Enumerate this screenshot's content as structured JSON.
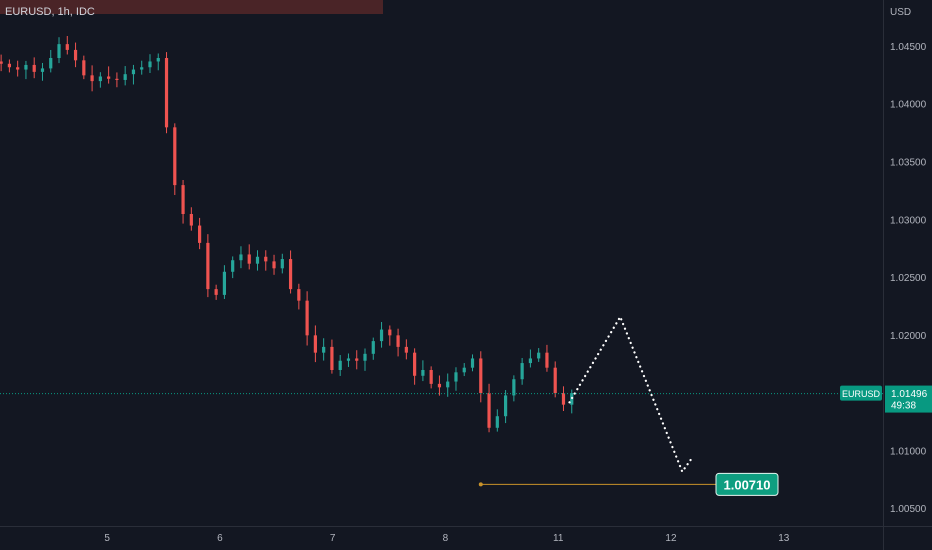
{
  "header": {
    "symbol_text": "EURUSD, 1h, IDC"
  },
  "axis": {
    "currency": "USD",
    "price_ticks": [
      {
        "value": 1.045,
        "label": "1.04500"
      },
      {
        "value": 1.04,
        "label": "1.04000"
      },
      {
        "value": 1.035,
        "label": "1.03500"
      },
      {
        "value": 1.03,
        "label": "1.03000"
      },
      {
        "value": 1.025,
        "label": "1.02500"
      },
      {
        "value": 1.02,
        "label": "1.02000"
      },
      {
        "value": 1.01,
        "label": "1.01000"
      },
      {
        "value": 1.005,
        "label": "1.00500"
      }
    ],
    "date_ticks": [
      {
        "pos": 5.0,
        "label": "5"
      },
      {
        "pos": 6.0,
        "label": "6"
      },
      {
        "pos": 7.0,
        "label": "7"
      },
      {
        "pos": 8.0,
        "label": "8"
      },
      {
        "pos": 9.0,
        "label": "11"
      },
      {
        "pos": 10.0,
        "label": "12"
      },
      {
        "pos": 11.0,
        "label": "13"
      }
    ]
  },
  "last_price": {
    "symbol": "EURUSD",
    "price": 1.01496,
    "price_text": "1.01496",
    "countdown": "49:38",
    "color": "#089981"
  },
  "annotation": {
    "level": 1.0071,
    "level_text": "1.00710",
    "color": "#0e9e80",
    "line_color": "#c8922a"
  },
  "colors": {
    "up": "#26a69a",
    "down": "#ef5350",
    "background": "#131722"
  },
  "chart_data": {
    "type": "candlestick",
    "y_unit": "USD",
    "interval": "1h",
    "approx_closes": [
      1.0435,
      1.0432,
      1.043,
      1.0434,
      1.0428,
      1.0431,
      1.044,
      1.0452,
      1.0447,
      1.0438,
      1.0425,
      1.042,
      1.0424,
      1.0422,
      1.0421,
      1.0426,
      1.043,
      1.0432,
      1.0437,
      1.044,
      1.038,
      1.033,
      1.0305,
      1.0295,
      1.028,
      1.024,
      1.0235,
      1.0255,
      1.0265,
      1.027,
      1.0262,
      1.0268,
      1.0264,
      1.0258,
      1.0266,
      1.024,
      1.023,
      1.02,
      1.0185,
      1.019,
      1.017,
      1.0178,
      1.018,
      1.0178,
      1.0184,
      1.0195,
      1.0205,
      1.02,
      1.019,
      1.0185,
      1.0165,
      1.017,
      1.0158,
      1.0155,
      1.016,
      1.0168,
      1.0172,
      1.018,
      1.015,
      1.012,
      1.013,
      1.0148,
      1.0162,
      1.0176,
      1.018,
      1.0185,
      1.0172,
      1.015,
      1.014,
      1.015
    ],
    "projection_path": [
      {
        "x": 9.1,
        "y": 1.0142
      },
      {
        "x": 9.55,
        "y": 1.0216
      },
      {
        "x": 10.1,
        "y": 1.0082
      },
      {
        "x": 10.18,
        "y": 1.0093
      }
    ],
    "ylim": [
      1.0035,
      1.0485
    ],
    "xlim": [
      4.05,
      11.88
    ]
  }
}
